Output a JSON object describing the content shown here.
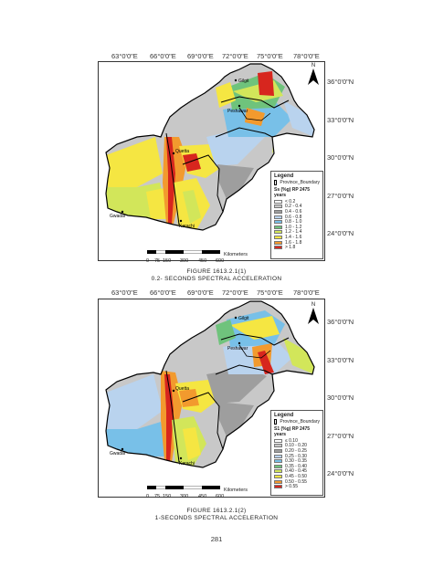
{
  "figures": [
    {
      "longitude_labels": [
        "63°0'0\"E",
        "66°0'0\"E",
        "69°0'0\"E",
        "72°0'0\"E",
        "75°0'0\"E",
        "78°0'0\"E"
      ],
      "latitude_labels": [
        "36°0'0\"N",
        "33°0'0\"N",
        "30°0'0\"N",
        "27°0'0\"N",
        "24°0'0\"N"
      ],
      "city_labels": [
        "Gilgit",
        "Peshawar",
        "Quetta",
        "Karachi",
        "Gwadar"
      ],
      "legend": {
        "title": "Legend",
        "boundary_label": "Province_Boundary",
        "subtitle": "Ss (%g) RP 2475 years",
        "items": [
          {
            "label": "< 0.2",
            "color": "#ffffff"
          },
          {
            "label": "0.2 - 0.4",
            "color": "#c8c8c8"
          },
          {
            "label": "0.4 - 0.6",
            "color": "#9e9e9e"
          },
          {
            "label": "0.6 - 0.8",
            "color": "#b9d3ee"
          },
          {
            "label": "0.8 - 1.0",
            "color": "#78c0e8"
          },
          {
            "label": "1.0 - 1.2",
            "color": "#6fc37c"
          },
          {
            "label": "1.2 - 1.4",
            "color": "#d2e65a"
          },
          {
            "label": "1.4 - 1.6",
            "color": "#f5e642"
          },
          {
            "label": "1.6 - 1.8",
            "color": "#f29a2e"
          },
          {
            "label": "> 1.8",
            "color": "#d7261e"
          }
        ]
      },
      "scale": {
        "ticks": [
          "0",
          "75",
          "150",
          "300",
          "450",
          "600"
        ],
        "unit": "Kilometers"
      },
      "north_label": "N",
      "caption_line1": "FIGURE 1613.2.1(1)",
      "caption_line2": "0.2- SECONDS SPECTRAL ACCELERATION"
    },
    {
      "longitude_labels": [
        "63°0'0\"E",
        "66°0'0\"E",
        "69°0'0\"E",
        "72°0'0\"E",
        "75°0'0\"E",
        "78°0'0\"E"
      ],
      "latitude_labels": [
        "36°0'0\"N",
        "33°0'0\"N",
        "30°0'0\"N",
        "27°0'0\"N",
        "24°0'0\"N"
      ],
      "city_labels": [
        "Gilgit",
        "Peshawar",
        "Quetta",
        "Karachi",
        "Gwadar"
      ],
      "legend": {
        "title": "Legend",
        "boundary_label": "Province_Boundary",
        "subtitle": "S1 (%g) RP 2475 years",
        "items": [
          {
            "label": "≤ 0.10",
            "color": "#ffffff"
          },
          {
            "label": "0.10 - 0.20",
            "color": "#c8c8c8"
          },
          {
            "label": "0.20 - 0.25",
            "color": "#9e9e9e"
          },
          {
            "label": "0.25 - 0.30",
            "color": "#b9d3ee"
          },
          {
            "label": "0.30 - 0.35",
            "color": "#78c0e8"
          },
          {
            "label": "0.35 - 0.40",
            "color": "#6fc37c"
          },
          {
            "label": "0.40 - 0.45",
            "color": "#d2e65a"
          },
          {
            "label": "0.45 - 0.50",
            "color": "#f5e642"
          },
          {
            "label": "0.50 - 0.55",
            "color": "#f29a2e"
          },
          {
            "label": "> 0.55",
            "color": "#d7261e"
          }
        ]
      },
      "scale": {
        "ticks": [
          "0",
          "75",
          "150",
          "300",
          "450",
          "600"
        ],
        "unit": "Kilometers"
      },
      "north_label": "N",
      "caption_line1": "FIGURE 1613.2.1(2)",
      "caption_line2": "1-SECONDS SPECTRAL ACCELERATION"
    }
  ],
  "page_number": "281",
  "colors": {
    "boundary": "#000000",
    "border_red": "#d7261e",
    "frame": "#333333"
  }
}
